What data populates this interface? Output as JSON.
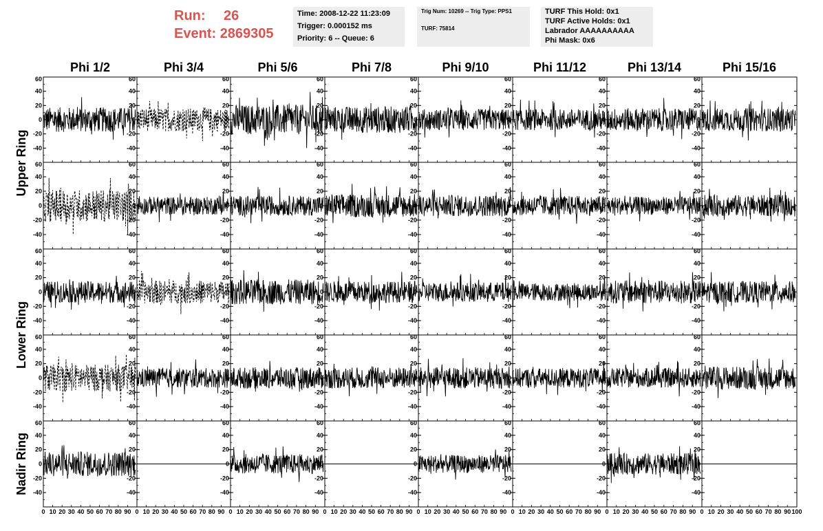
{
  "header": {
    "run_label": "Run:",
    "run_value": "26",
    "event_label": "Event:",
    "event_value": "2869305",
    "time_line": "Time: 2008-12-22 11:23:09",
    "trigger_line": "Trigger: 0.000152 ms",
    "priority_line": "Priority: 6 -- Queue: 6",
    "trig_line": "Trig Num: 10269 -- Trig Type: PPS1",
    "turf_line": "TURF: 75814",
    "turf_this_hold": "TURF This Hold: 0x1",
    "turf_active_holds": "TURF Active Holds: 0x1",
    "labrador": "Labrador AAAAAAAAAA",
    "phi_mask": "Phi Mask: 0x6"
  },
  "colors": {
    "header_accent": "#d9534f",
    "info_box_bg": "#ededed",
    "trace": "#000000"
  },
  "chart_data": {
    "type": "line",
    "columns": [
      "Phi 1/2",
      "Phi 3/4",
      "Phi 5/6",
      "Phi 7/8",
      "Phi 9/10",
      "Phi 11/12",
      "Phi 13/14",
      "Phi 15/16"
    ],
    "rows": [
      "Upper Ring",
      "Lower Ring",
      "Nadir Ring"
    ],
    "row_panels_per_ring": 2,
    "xlim": [
      0,
      100
    ],
    "ylim": [
      -60,
      60
    ],
    "x_ticks": [
      "0",
      "10",
      "20",
      "30",
      "40",
      "50",
      "60",
      "70",
      "80",
      "90",
      "100"
    ],
    "y_ticks": [
      "-60",
      "-40",
      "-20",
      "0",
      "20",
      "40",
      "60"
    ],
    "y_tick_labels_shown": [
      "-40",
      "-20",
      "0",
      "20",
      "40",
      "60"
    ],
    "bottom_tick_labels_text": "0 10 20 30 40 50 60 70 80 90 100",
    "panels": [
      {
        "row": 0,
        "col": 0,
        "style": "solid",
        "amplitude": 14
      },
      {
        "row": 0,
        "col": 1,
        "style": "dashed",
        "amplitude": 13
      },
      {
        "row": 0,
        "col": 2,
        "style": "solid",
        "amplitude": 17
      },
      {
        "row": 0,
        "col": 3,
        "style": "solid",
        "amplitude": 15
      },
      {
        "row": 0,
        "col": 4,
        "style": "solid",
        "amplitude": 12
      },
      {
        "row": 0,
        "col": 5,
        "style": "solid",
        "amplitude": 12
      },
      {
        "row": 0,
        "col": 6,
        "style": "solid",
        "amplitude": 13
      },
      {
        "row": 0,
        "col": 7,
        "style": "solid",
        "amplitude": 13
      },
      {
        "row": 1,
        "col": 0,
        "style": "dashed",
        "amplitude": 18
      },
      {
        "row": 1,
        "col": 1,
        "style": "solid",
        "amplitude": 10
      },
      {
        "row": 1,
        "col": 2,
        "style": "solid",
        "amplitude": 11
      },
      {
        "row": 1,
        "col": 3,
        "style": "solid",
        "amplitude": 13
      },
      {
        "row": 1,
        "col": 4,
        "style": "solid",
        "amplitude": 12
      },
      {
        "row": 1,
        "col": 5,
        "style": "solid",
        "amplitude": 11
      },
      {
        "row": 1,
        "col": 6,
        "style": "solid",
        "amplitude": 10
      },
      {
        "row": 1,
        "col": 7,
        "style": "solid",
        "amplitude": 12
      },
      {
        "row": 2,
        "col": 0,
        "style": "solid",
        "amplitude": 12
      },
      {
        "row": 2,
        "col": 1,
        "style": "dashed",
        "amplitude": 13
      },
      {
        "row": 2,
        "col": 2,
        "style": "solid",
        "amplitude": 14
      },
      {
        "row": 2,
        "col": 3,
        "style": "solid",
        "amplitude": 12
      },
      {
        "row": 2,
        "col": 4,
        "style": "solid",
        "amplitude": 11
      },
      {
        "row": 2,
        "col": 5,
        "style": "solid",
        "amplitude": 10
      },
      {
        "row": 2,
        "col": 6,
        "style": "solid",
        "amplitude": 13
      },
      {
        "row": 2,
        "col": 7,
        "style": "solid",
        "amplitude": 12
      },
      {
        "row": 3,
        "col": 0,
        "style": "dashed",
        "amplitude": 15
      },
      {
        "row": 3,
        "col": 1,
        "style": "solid",
        "amplitude": 11
      },
      {
        "row": 3,
        "col": 2,
        "style": "solid",
        "amplitude": 12
      },
      {
        "row": 3,
        "col": 3,
        "style": "solid",
        "amplitude": 12
      },
      {
        "row": 3,
        "col": 4,
        "style": "solid",
        "amplitude": 12
      },
      {
        "row": 3,
        "col": 5,
        "style": "solid",
        "amplitude": 11
      },
      {
        "row": 3,
        "col": 6,
        "style": "solid",
        "amplitude": 11
      },
      {
        "row": 3,
        "col": 7,
        "style": "solid",
        "amplitude": 13
      },
      {
        "row": 4,
        "col": 0,
        "style": "solid",
        "amplitude": 14
      },
      {
        "row": 4,
        "col": 1,
        "style": "flat",
        "amplitude": 0
      },
      {
        "row": 4,
        "col": 2,
        "style": "solid",
        "amplitude": 11
      },
      {
        "row": 4,
        "col": 3,
        "style": "flat",
        "amplitude": 0
      },
      {
        "row": 4,
        "col": 4,
        "style": "solid",
        "amplitude": 10
      },
      {
        "row": 4,
        "col": 5,
        "style": "flat",
        "amplitude": 0
      },
      {
        "row": 4,
        "col": 6,
        "style": "solid",
        "amplitude": 12
      },
      {
        "row": 4,
        "col": 7,
        "style": "flat",
        "amplitude": 0
      }
    ]
  }
}
